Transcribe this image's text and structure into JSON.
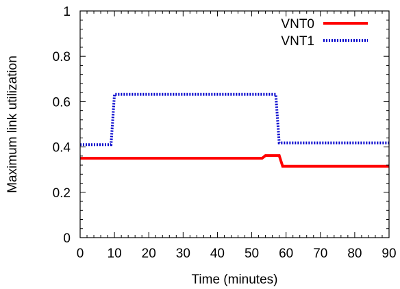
{
  "chart_data": {
    "type": "line",
    "title": "",
    "xlabel": "Time (minutes)",
    "ylabel": "Maximum link utilization",
    "xlim": [
      0,
      90
    ],
    "ylim": [
      0,
      1
    ],
    "x_ticks": [
      0,
      10,
      20,
      30,
      40,
      50,
      60,
      70,
      80,
      90
    ],
    "y_ticks": [
      0,
      0.2,
      0.4,
      0.6,
      0.8,
      1
    ],
    "y_tick_labels": [
      "0",
      "0.2",
      "0.4",
      "0.6",
      "0.8",
      "1"
    ],
    "grid": false,
    "legend_position": "top-right",
    "series": [
      {
        "name": "VNT0",
        "color": "#ff0000",
        "style": "solid",
        "points": [
          [
            0,
            0.35
          ],
          [
            53,
            0.35
          ],
          [
            54,
            0.362
          ],
          [
            57,
            0.362
          ],
          [
            58,
            0.362
          ],
          [
            59,
            0.315
          ],
          [
            90,
            0.315
          ]
        ]
      },
      {
        "name": "VNT1",
        "color": "#0000cc",
        "style": "dotted",
        "points": [
          [
            0,
            0.41
          ],
          [
            9,
            0.41
          ],
          [
            10,
            0.632
          ],
          [
            57,
            0.632
          ],
          [
            58,
            0.418
          ],
          [
            90,
            0.418
          ]
        ]
      }
    ]
  }
}
